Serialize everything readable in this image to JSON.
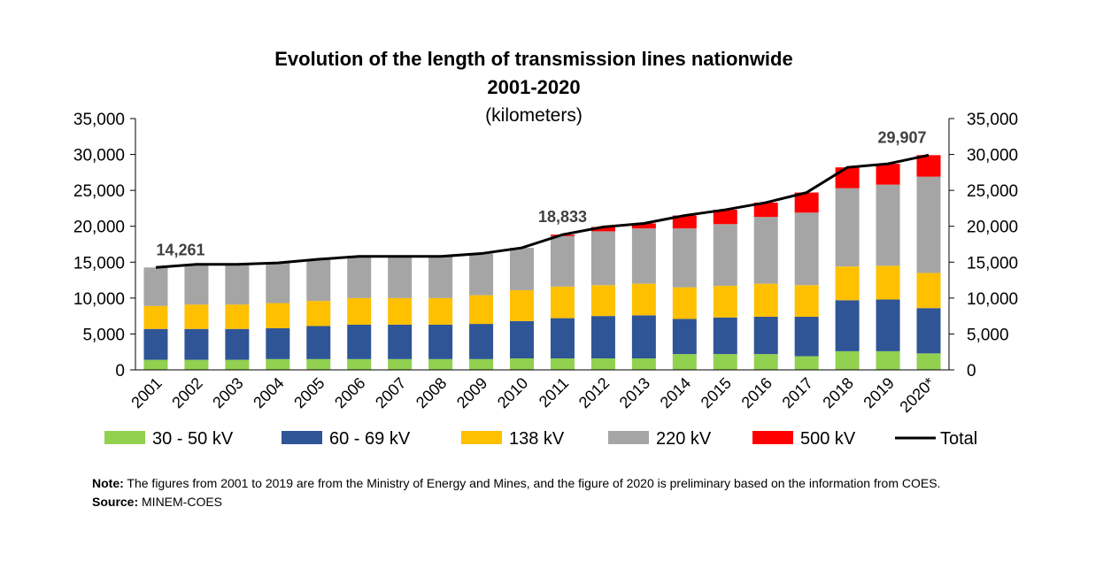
{
  "chart_data": {
    "type": "bar",
    "stacked": true,
    "title": "Evolution of the length of transmission lines nationwide",
    "title_line2": "2001-2020",
    "subtitle": "(kilometers)",
    "categories": [
      "2001",
      "2002",
      "2003",
      "2004",
      "2005",
      "2006",
      "2007",
      "2008",
      "2009",
      "2010",
      "2011",
      "2012",
      "2013",
      "2014",
      "2015",
      "2016",
      "2017",
      "2018",
      "2019",
      "2020*"
    ],
    "ylim": [
      0,
      35000
    ],
    "yticks": [
      0,
      5000,
      10000,
      15000,
      20000,
      25000,
      30000,
      35000
    ],
    "ytick_labels": [
      "0",
      "5,000",
      "10,000",
      "15,000",
      "20,000",
      "25,000",
      "30,000",
      "35,000"
    ],
    "series": [
      {
        "name": "30 - 50  kV",
        "color": "#92D050",
        "values": [
          1400,
          1400,
          1400,
          1500,
          1500,
          1500,
          1500,
          1500,
          1500,
          1600,
          1600,
          1600,
          1600,
          2200,
          2200,
          2200,
          1900,
          2600,
          2600,
          2300
        ]
      },
      {
        "name": "60 - 69  kV",
        "color": "#2F5597",
        "values": [
          4300,
          4300,
          4300,
          4300,
          4600,
          4800,
          4800,
          4800,
          4900,
          5200,
          5600,
          5900,
          6000,
          4900,
          5100,
          5200,
          5500,
          7100,
          7200,
          6300
        ]
      },
      {
        "name": "138  kV",
        "color": "#FFC000",
        "values": [
          3200,
          3400,
          3400,
          3500,
          3500,
          3700,
          3700,
          3700,
          4000,
          4300,
          4400,
          4300,
          4400,
          4400,
          4400,
          4600,
          4400,
          4700,
          4700,
          4900
        ]
      },
      {
        "name": "220  kV",
        "color": "#A5A5A5",
        "values": [
          5361,
          5600,
          5600,
          5600,
          5800,
          5800,
          5800,
          5800,
          5800,
          5900,
          7033,
          7500,
          7700,
          8200,
          8600,
          9300,
          10100,
          10900,
          11300,
          13407
        ]
      },
      {
        "name": "500 kV",
        "color": "#FF0000",
        "values": [
          0,
          0,
          0,
          0,
          0,
          0,
          0,
          0,
          0,
          0,
          200,
          600,
          700,
          1800,
          2000,
          2000,
          2800,
          2900,
          2900,
          3000
        ]
      }
    ],
    "total": {
      "name": "Total",
      "color": "#000000",
      "values": [
        14261,
        14700,
        14700,
        14900,
        15400,
        15800,
        15800,
        15800,
        16200,
        17000,
        18833,
        19900,
        20400,
        21500,
        22300,
        23300,
        24700,
        28200,
        28700,
        29907
      ]
    },
    "annotations": [
      {
        "index": 0,
        "text": "14,261"
      },
      {
        "index": 10,
        "text": "18,833"
      },
      {
        "index": 19,
        "text": "29,907"
      }
    ],
    "legend_position": "bottom",
    "grid": false
  },
  "note": {
    "label": "Note:",
    "text": "The figures from 2001 to 2019 are from the Ministry of Energy and Mines, and the figure of 2020 is preliminary based on the information from COES.",
    "source_label": "Source:",
    "source_text": "MINEM-COES"
  }
}
